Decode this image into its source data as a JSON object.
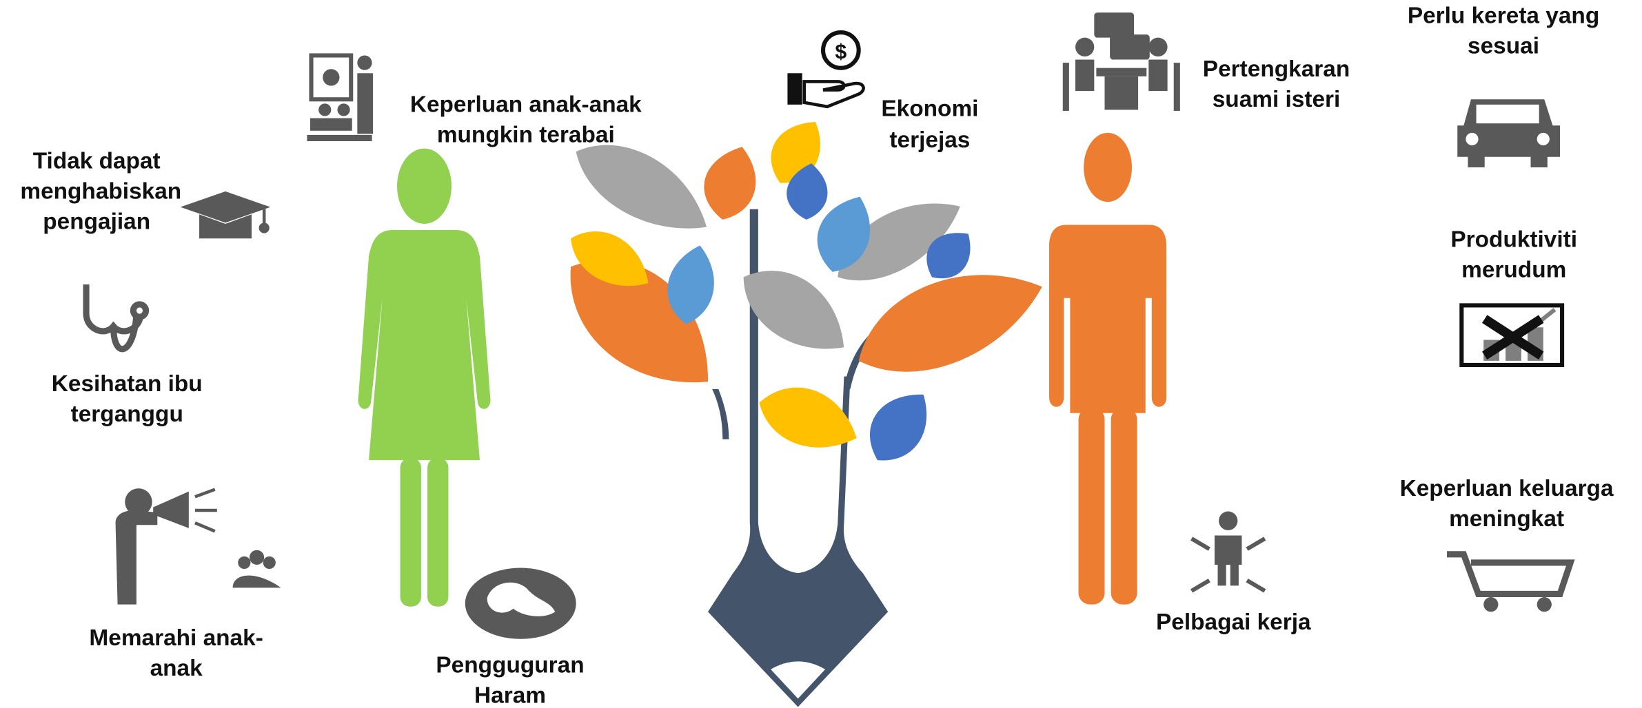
{
  "labels": [
    {
      "lines": [
        "Keperluan anak-anak",
        "mungkin terabai"
      ]
    },
    {
      "lines": [
        "Tidak dapat",
        "menghabiskan",
        "pengajian"
      ]
    },
    {
      "lines": [
        "Kesihatan ibu",
        "terganggu"
      ]
    },
    {
      "lines": [
        "Memarahi anak-",
        "anak"
      ]
    },
    {
      "lines": [
        "Pengguguran",
        "Haram"
      ]
    },
    {
      "lines": [
        "Ekonomi",
        "terjejas"
      ]
    },
    {
      "lines": [
        "Pertengkaran",
        "suami isteri"
      ]
    },
    {
      "lines": [
        "Perlu kereta yang",
        "sesuai"
      ]
    },
    {
      "lines": [
        "Produktiviti",
        "merudum"
      ]
    },
    {
      "lines": [
        "Keperluan keluarga",
        "meningkat"
      ]
    },
    {
      "lines": [
        "Pelbagai kerja"
      ]
    }
  ]
}
